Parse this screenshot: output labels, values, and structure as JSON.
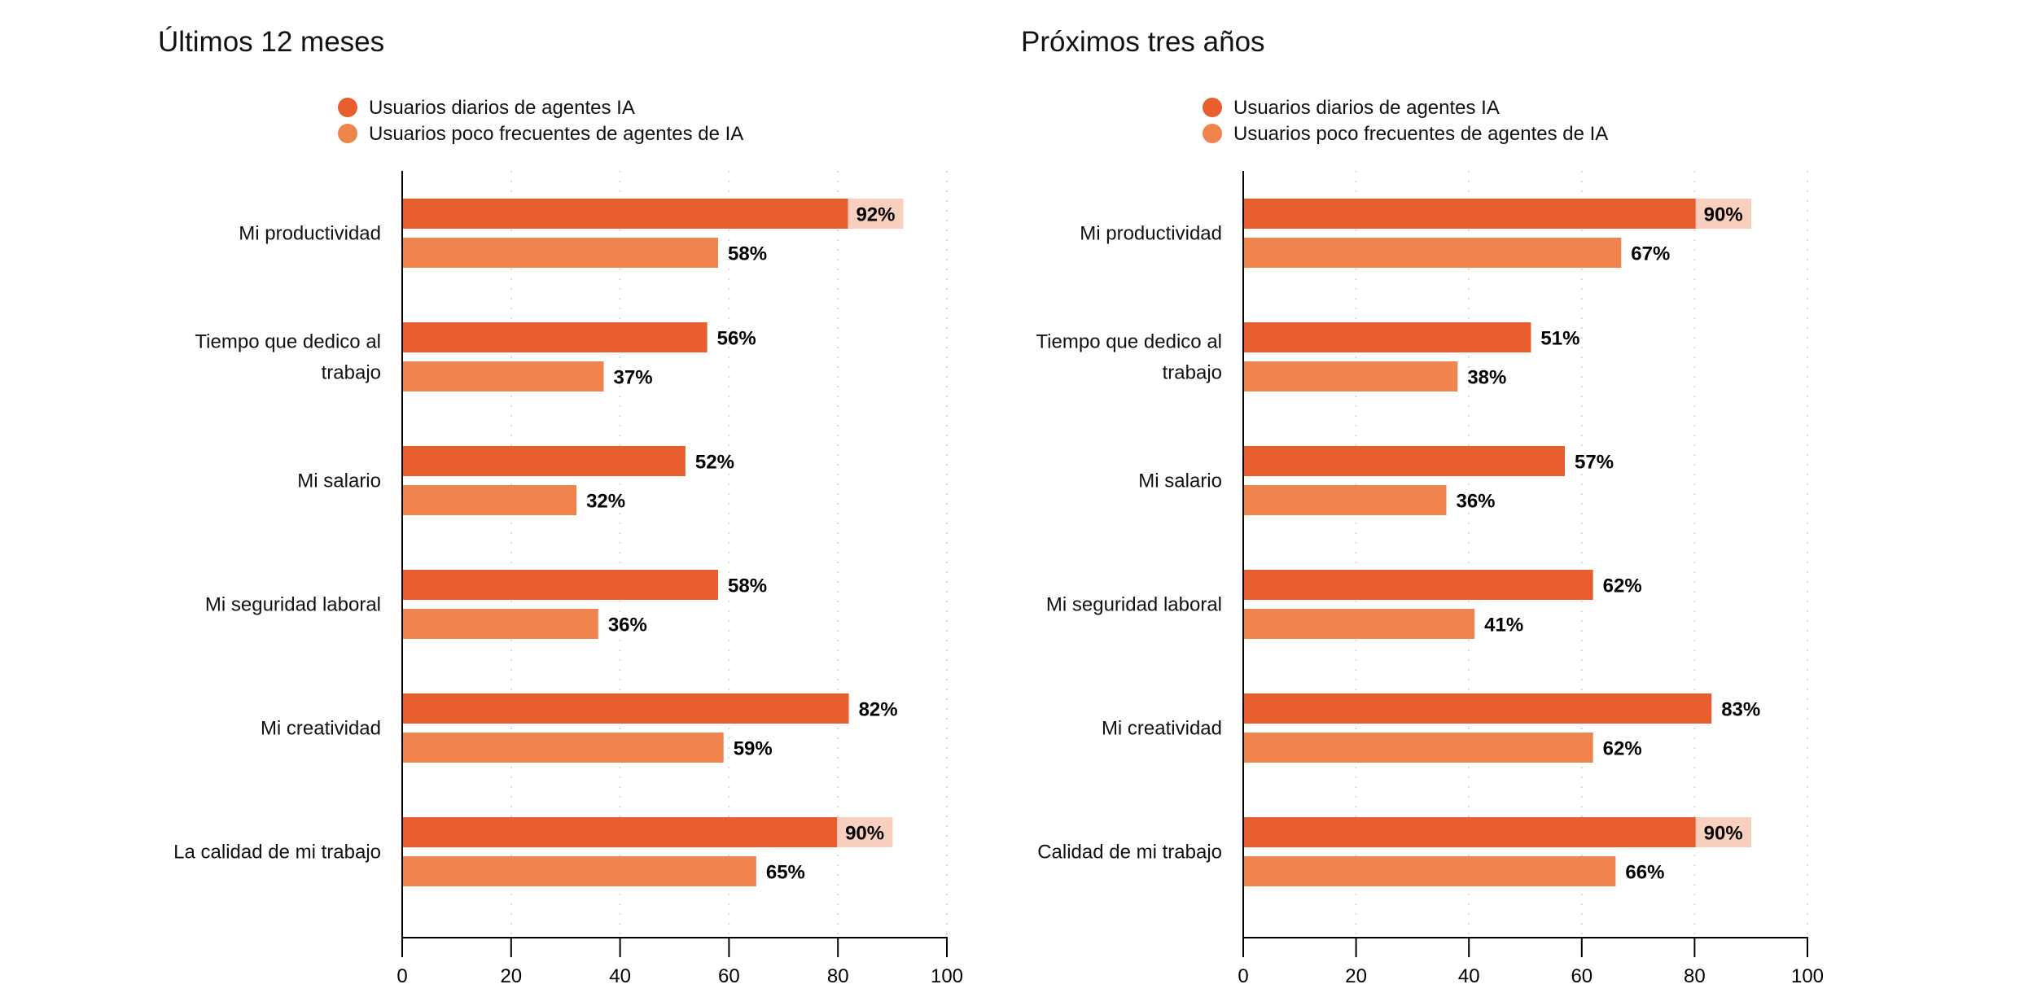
{
  "colors": {
    "daily": "#E95E2F",
    "infrequent": "#EF844D",
    "label_bg": "#F9CFC0",
    "grid": "#D8D8D8"
  },
  "chart_data": [
    {
      "type": "bar",
      "orientation": "horizontal",
      "title": "Últimos 12 meses",
      "categories": [
        [
          "Mi productividad"
        ],
        [
          "Tiempo que dedico al",
          "trabajo"
        ],
        [
          "Mi salario"
        ],
        [
          "Mi seguridad laboral"
        ],
        [
          "Mi creatividad"
        ],
        [
          "La calidad de mi trabajo"
        ]
      ],
      "series": [
        {
          "name": "Usuarios diarios de agentes IA",
          "values": [
            92,
            56,
            52,
            58,
            82,
            90
          ]
        },
        {
          "name": "Usuarios poco frecuentes de agentes de IA",
          "values": [
            58,
            37,
            32,
            36,
            59,
            65
          ]
        }
      ],
      "xlim": [
        0,
        100
      ],
      "xticks": [
        0,
        20,
        40,
        60,
        80,
        100
      ],
      "value_suffix": "%",
      "grid": true,
      "legend": "top"
    },
    {
      "type": "bar",
      "orientation": "horizontal",
      "title": "Próximos tres años",
      "categories": [
        [
          "Mi productividad"
        ],
        [
          "Tiempo que dedico al",
          "trabajo"
        ],
        [
          "Mi salario"
        ],
        [
          "Mi seguridad laboral"
        ],
        [
          "Mi creatividad"
        ],
        [
          "Calidad de mi trabajo"
        ]
      ],
      "series": [
        {
          "name": "Usuarios diarios de agentes IA",
          "values": [
            90,
            51,
            57,
            62,
            83,
            90
          ]
        },
        {
          "name": "Usuarios poco frecuentes de agentes de IA",
          "values": [
            67,
            38,
            36,
            41,
            62,
            66
          ]
        }
      ],
      "xlim": [
        0,
        100
      ],
      "xticks": [
        0,
        20,
        40,
        60,
        80,
        100
      ],
      "value_suffix": "%",
      "grid": true,
      "legend": "top"
    }
  ]
}
